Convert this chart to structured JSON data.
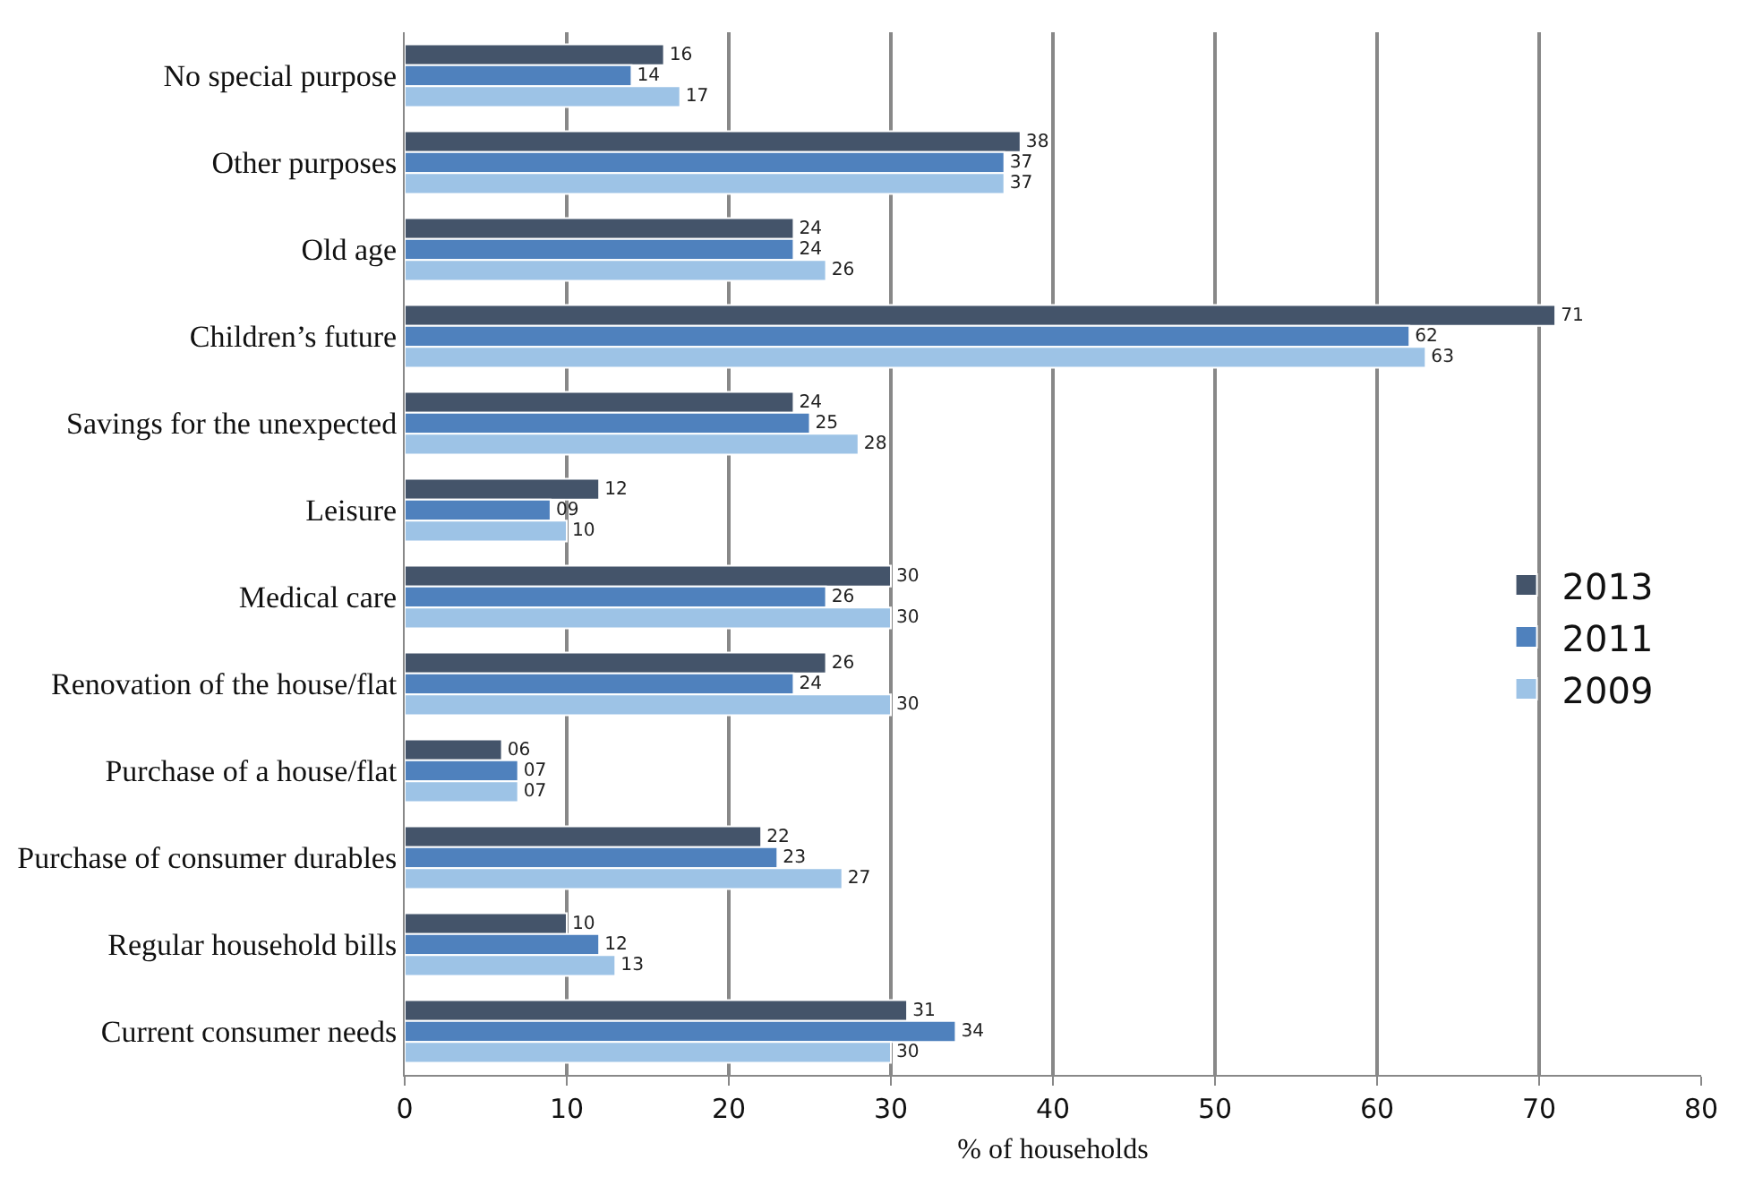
{
  "chart_data": {
    "type": "bar",
    "orientation": "horizontal",
    "xlabel": "% of households",
    "categories": [
      "No special purpose",
      "Other purposes",
      "Old age",
      "Children’s future",
      "Savings for the unexpected",
      "Leisure",
      "Medical care",
      "Renovation of the house/flat",
      "Purchase of a house/flat",
      "Purchase of consumer durables",
      "Regular household bills",
      "Current consumer needs"
    ],
    "series": [
      {
        "name": "2013",
        "color": "#44546a",
        "values": [
          16,
          38,
          24,
          71,
          24,
          12,
          30,
          26,
          6,
          22,
          10,
          31
        ],
        "value_labels": [
          "16",
          "38",
          "24",
          "71",
          "24",
          "12",
          "30",
          "26",
          "06",
          "22",
          "10",
          "31"
        ]
      },
      {
        "name": "2011",
        "color": "#4f81bd",
        "values": [
          14,
          37,
          24,
          62,
          25,
          9,
          26,
          24,
          7,
          23,
          12,
          34
        ],
        "value_labels": [
          "14",
          "37",
          "24",
          "62",
          "25",
          "09",
          "26",
          "24",
          "07",
          "23",
          "12",
          "34"
        ]
      },
      {
        "name": "2009",
        "color": "#9dc3e6",
        "values": [
          17,
          37,
          26,
          63,
          28,
          10,
          30,
          30,
          7,
          27,
          13,
          30
        ],
        "value_labels": [
          "17",
          "37",
          "26",
          "63",
          "28",
          "10",
          "30",
          "30",
          "07",
          "27",
          "13",
          "30"
        ]
      }
    ],
    "xlim": [
      0,
      80
    ],
    "xticks": [
      0,
      10,
      20,
      30,
      40,
      50,
      60,
      70,
      80
    ],
    "grid": "x",
    "legend": "right"
  }
}
